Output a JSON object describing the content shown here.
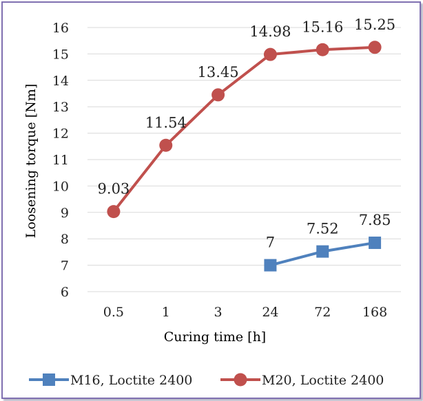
{
  "chart_data": {
    "type": "line",
    "title": "",
    "xlabel": "Curing time [h]",
    "ylabel": "Loosening torque [Nm]",
    "categories": [
      "0.5",
      "1",
      "3",
      "24",
      "72",
      "168"
    ],
    "ylim": [
      6,
      16
    ],
    "yticks": [
      "6",
      "7",
      "8",
      "9",
      "10",
      "11",
      "12",
      "13",
      "14",
      "15",
      "16"
    ],
    "grid": true,
    "legend_position": "bottom",
    "series": [
      {
        "name": "M16, Loctite 2400",
        "marker": "square",
        "color": "#4f81bd",
        "values": [
          null,
          null,
          null,
          7,
          7.52,
          7.85
        ],
        "labels": [
          "",
          "",
          "",
          "7",
          "7.52",
          "7.85"
        ]
      },
      {
        "name": "M20, Loctite 2400",
        "marker": "circle",
        "color": "#c0504d",
        "values": [
          9.03,
          11.54,
          13.45,
          14.98,
          15.16,
          15.25
        ],
        "labels": [
          "9.03",
          "11.54",
          "13.45",
          "14.98",
          "15.16",
          "15.25"
        ]
      }
    ]
  }
}
